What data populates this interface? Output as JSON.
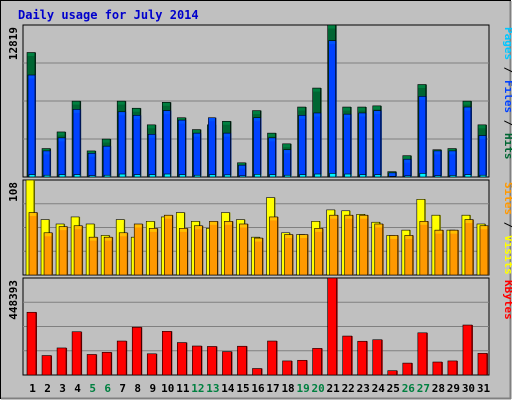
{
  "chart_data": {
    "type": "bar",
    "title": "Daily usage for July 2014",
    "categories": [
      "1",
      "2",
      "3",
      "4",
      "5",
      "6",
      "7",
      "8",
      "9",
      "10",
      "11",
      "12",
      "13",
      "14",
      "15",
      "16",
      "17",
      "18",
      "19",
      "20",
      "21",
      "22",
      "23",
      "24",
      "25",
      "26",
      "27",
      "28",
      "29",
      "30",
      "31"
    ],
    "weekend_days": [
      "5",
      "6",
      "12",
      "13",
      "19",
      "20",
      "26",
      "27"
    ],
    "panels": [
      {
        "id": "hits",
        "max_label": "12819",
        "ylim": [
          0,
          12819
        ],
        "legend": [
          "Pages",
          "Files",
          "Hits"
        ],
        "series": [
          {
            "name": "Hits",
            "color": "#006633",
            "values": [
              10500,
              2400,
              3800,
              6400,
              2200,
              3200,
              6400,
              5800,
              4400,
              6300,
              5000,
              4000,
              4400,
              4700,
              1200,
              5600,
              3700,
              2800,
              5900,
              7500,
              12819,
              5900,
              5900,
              6000,
              450,
              1800,
              7800,
              2300,
              2400,
              6400,
              4400
            ]
          },
          {
            "name": "Files",
            "color": "#0042ff",
            "values": [
              8600,
              2200,
              3300,
              5700,
              2000,
              2600,
              5500,
              5200,
              3600,
              5600,
              4800,
              3700,
              5000,
              3700,
              1000,
              5000,
              3300,
              2300,
              5200,
              5400,
              11500,
              5300,
              5400,
              5600,
              350,
              1500,
              6800,
              2200,
              2200,
              5900,
              3500
            ]
          },
          {
            "name": "Pages",
            "color": "#00c6ff",
            "values": [
              200,
              150,
              200,
              200,
              120,
              150,
              250,
              200,
              200,
              250,
              200,
              150,
              200,
              180,
              100,
              220,
              200,
              150,
              200,
              250,
              300,
              250,
              200,
              200,
              50,
              100,
              300,
              120,
              130,
              200,
              150
            ]
          }
        ]
      },
      {
        "id": "visits",
        "max_label": "108",
        "ylim": [
          0,
          108
        ],
        "legend": [
          "Sites",
          "Visits"
        ],
        "series": [
          {
            "name": "Visits",
            "color": "#ffff00",
            "values": [
              108,
              63,
              58,
              66,
              58,
              45,
              63,
              43,
              61,
              66,
              71,
              61,
              53,
              71,
              63,
              43,
              88,
              48,
              46,
              61,
              74,
              73,
              69,
              60,
              45,
              51,
              86,
              68,
              51,
              68,
              58
            ]
          },
          {
            "name": "Sites",
            "color": "#ff9900",
            "values": [
              71,
              48,
              55,
              56,
              43,
              43,
              48,
              58,
              53,
              68,
              53,
              56,
              61,
              61,
              58,
              42,
              66,
              46,
              46,
              53,
              68,
              68,
              68,
              58,
              45,
              45,
              61,
              51,
              51,
              63,
              56
            ]
          }
        ]
      },
      {
        "id": "kbytes",
        "max_label": "448393",
        "ylim": [
          0,
          448393
        ],
        "legend": [
          "KBytes"
        ],
        "series": [
          {
            "name": "KBytes",
            "color": "#ff0000",
            "values": [
              290000,
              90000,
              125000,
              200000,
              95000,
              105000,
              157000,
              221000,
              98000,
              202000,
              150000,
              134000,
              132000,
              108000,
              133000,
              30000,
              157000,
              65000,
              68000,
              123000,
              448393,
              180000,
              156000,
              163000,
              20000,
              55000,
              195000,
              60000,
              65000,
              231000,
              100000
            ]
          }
        ]
      }
    ]
  },
  "colors": {
    "background": "#c0c0c0",
    "title": "#0000cc",
    "weekend_label": "#008040",
    "weekday_label": "#000000"
  }
}
